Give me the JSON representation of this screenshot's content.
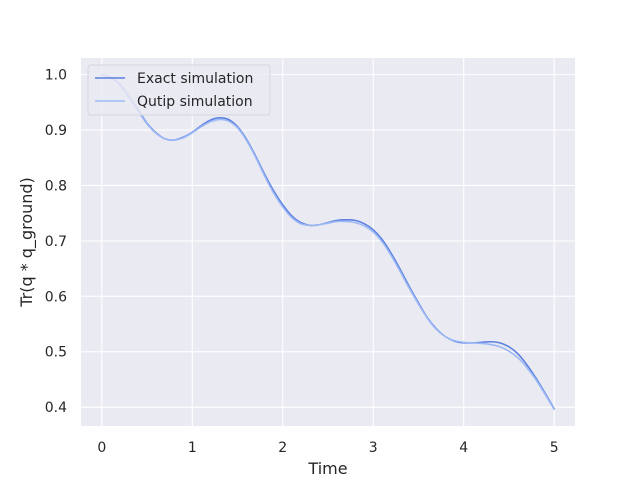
{
  "chart_data": {
    "type": "line",
    "xlabel": "Time",
    "ylabel": "Tr(q * q_ground)",
    "xlim": [
      -0.23,
      5.23
    ],
    "ylim": [
      0.366,
      1.03
    ],
    "xticks": [
      0,
      1,
      2,
      3,
      4,
      5
    ],
    "yticks": [
      0.4,
      0.5,
      0.6,
      0.7,
      0.8,
      0.9,
      1.0
    ],
    "xtick_labels": [
      "0",
      "1",
      "2",
      "3",
      "4",
      "5"
    ],
    "ytick_labels": [
      "0.4",
      "0.5",
      "0.6",
      "0.7",
      "0.8",
      "0.9",
      "1.0"
    ],
    "grid": true,
    "legend_position": "upper-left",
    "series": [
      {
        "name": "Exact simulation",
        "color": "#5b7fe0",
        "x": [
          0,
          0.1,
          0.2,
          0.3,
          0.4,
          0.5,
          0.6,
          0.7,
          0.8,
          0.9,
          1.0,
          1.1,
          1.2,
          1.3,
          1.4,
          1.5,
          1.6,
          1.7,
          1.8,
          1.9,
          2.0,
          2.1,
          2.2,
          2.3,
          2.4,
          2.5,
          2.6,
          2.7,
          2.8,
          2.9,
          3.0,
          3.1,
          3.2,
          3.3,
          3.4,
          3.5,
          3.6,
          3.7,
          3.8,
          3.9,
          4.0,
          4.1,
          4.2,
          4.3,
          4.4,
          4.5,
          4.6,
          4.7,
          4.8,
          4.9,
          5.0
        ],
        "y": [
          1.0,
          0.995,
          0.982,
          0.96,
          0.937,
          0.912,
          0.895,
          0.884,
          0.882,
          0.887,
          0.896,
          0.908,
          0.918,
          0.922,
          0.919,
          0.906,
          0.883,
          0.853,
          0.82,
          0.79,
          0.765,
          0.745,
          0.733,
          0.728,
          0.729,
          0.733,
          0.737,
          0.738,
          0.737,
          0.731,
          0.72,
          0.702,
          0.677,
          0.648,
          0.617,
          0.588,
          0.561,
          0.541,
          0.527,
          0.519,
          0.516,
          0.516,
          0.517,
          0.518,
          0.516,
          0.509,
          0.496,
          0.476,
          0.452,
          0.425,
          0.397
        ]
      },
      {
        "name": "Qutip simulation",
        "color": "#9db9f5",
        "x": [
          0,
          0.1,
          0.2,
          0.3,
          0.4,
          0.5,
          0.6,
          0.7,
          0.8,
          0.9,
          1.0,
          1.1,
          1.2,
          1.3,
          1.4,
          1.5,
          1.6,
          1.7,
          1.8,
          1.9,
          2.0,
          2.1,
          2.2,
          2.3,
          2.4,
          2.5,
          2.6,
          2.7,
          2.8,
          2.9,
          3.0,
          3.1,
          3.2,
          3.3,
          3.4,
          3.5,
          3.6,
          3.7,
          3.8,
          3.9,
          4.0,
          4.1,
          4.2,
          4.3,
          4.4,
          4.5,
          4.6,
          4.7,
          4.8,
          4.9,
          5.0
        ],
        "y": [
          1.0,
          0.995,
          0.981,
          0.959,
          0.935,
          0.911,
          0.894,
          0.884,
          0.882,
          0.886,
          0.895,
          0.906,
          0.915,
          0.919,
          0.916,
          0.904,
          0.881,
          0.851,
          0.817,
          0.786,
          0.761,
          0.742,
          0.731,
          0.728,
          0.729,
          0.732,
          0.735,
          0.735,
          0.733,
          0.727,
          0.716,
          0.698,
          0.673,
          0.644,
          0.614,
          0.586,
          0.56,
          0.54,
          0.527,
          0.52,
          0.517,
          0.516,
          0.515,
          0.513,
          0.509,
          0.501,
          0.489,
          0.471,
          0.449,
          0.423,
          0.396
        ]
      }
    ]
  },
  "style": {
    "plot_background": "#eaeaf2",
    "grid_color": "#ffffff",
    "text_color": "#262626"
  }
}
